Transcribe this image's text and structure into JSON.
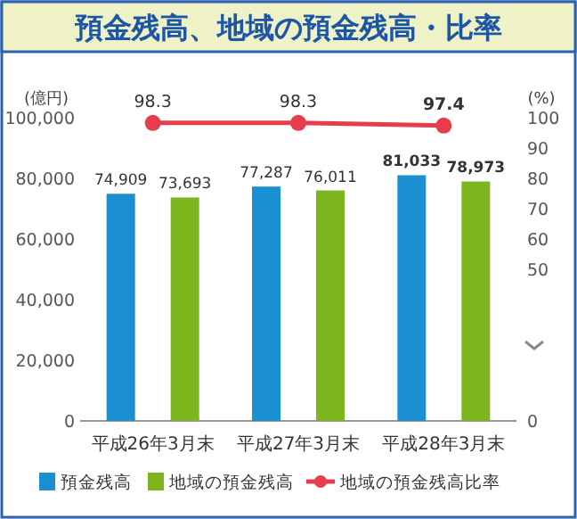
{
  "chart_data": {
    "type": "bar",
    "title": "預金残高、地域の預金残高・比率",
    "ylabel": "(億円)",
    "y2label": "(%)",
    "categories": [
      "平成26年3月末",
      "平成27年3月末",
      "平成28年3月末"
    ],
    "series": [
      {
        "name": "預金残高",
        "color": "#1a8fd2",
        "values": [
          74909,
          77287,
          81033
        ],
        "value_labels": [
          "74,909",
          "77,287",
          "81,033"
        ]
      },
      {
        "name": "地域の預金残高",
        "color": "#7db51f",
        "values": [
          73693,
          76011,
          78973
        ],
        "value_labels": [
          "73,693",
          "76,011",
          "78,973"
        ]
      },
      {
        "name": "地域の預金残高比率",
        "type": "line",
        "axis": "y2",
        "color": "#e63c4c",
        "marker": "circle",
        "values": [
          98.3,
          98.3,
          97.4
        ],
        "value_labels": [
          "98.3",
          "98.3",
          "97.4"
        ]
      }
    ],
    "ylim": [
      0,
      100000
    ],
    "yticks": [
      {
        "value": 0,
        "label": "0"
      },
      {
        "value": 20000,
        "label": "20,000"
      },
      {
        "value": 40000,
        "label": "40,000"
      },
      {
        "value": 60000,
        "label": "60,000"
      },
      {
        "value": 80000,
        "label": "80,000"
      },
      {
        "value": 100000,
        "label": "100,000"
      }
    ],
    "y2lim": [
      0,
      100
    ],
    "y2ticks": [
      0,
      50,
      60,
      70,
      80,
      90,
      100
    ],
    "grid": false,
    "legend": "bottom"
  }
}
